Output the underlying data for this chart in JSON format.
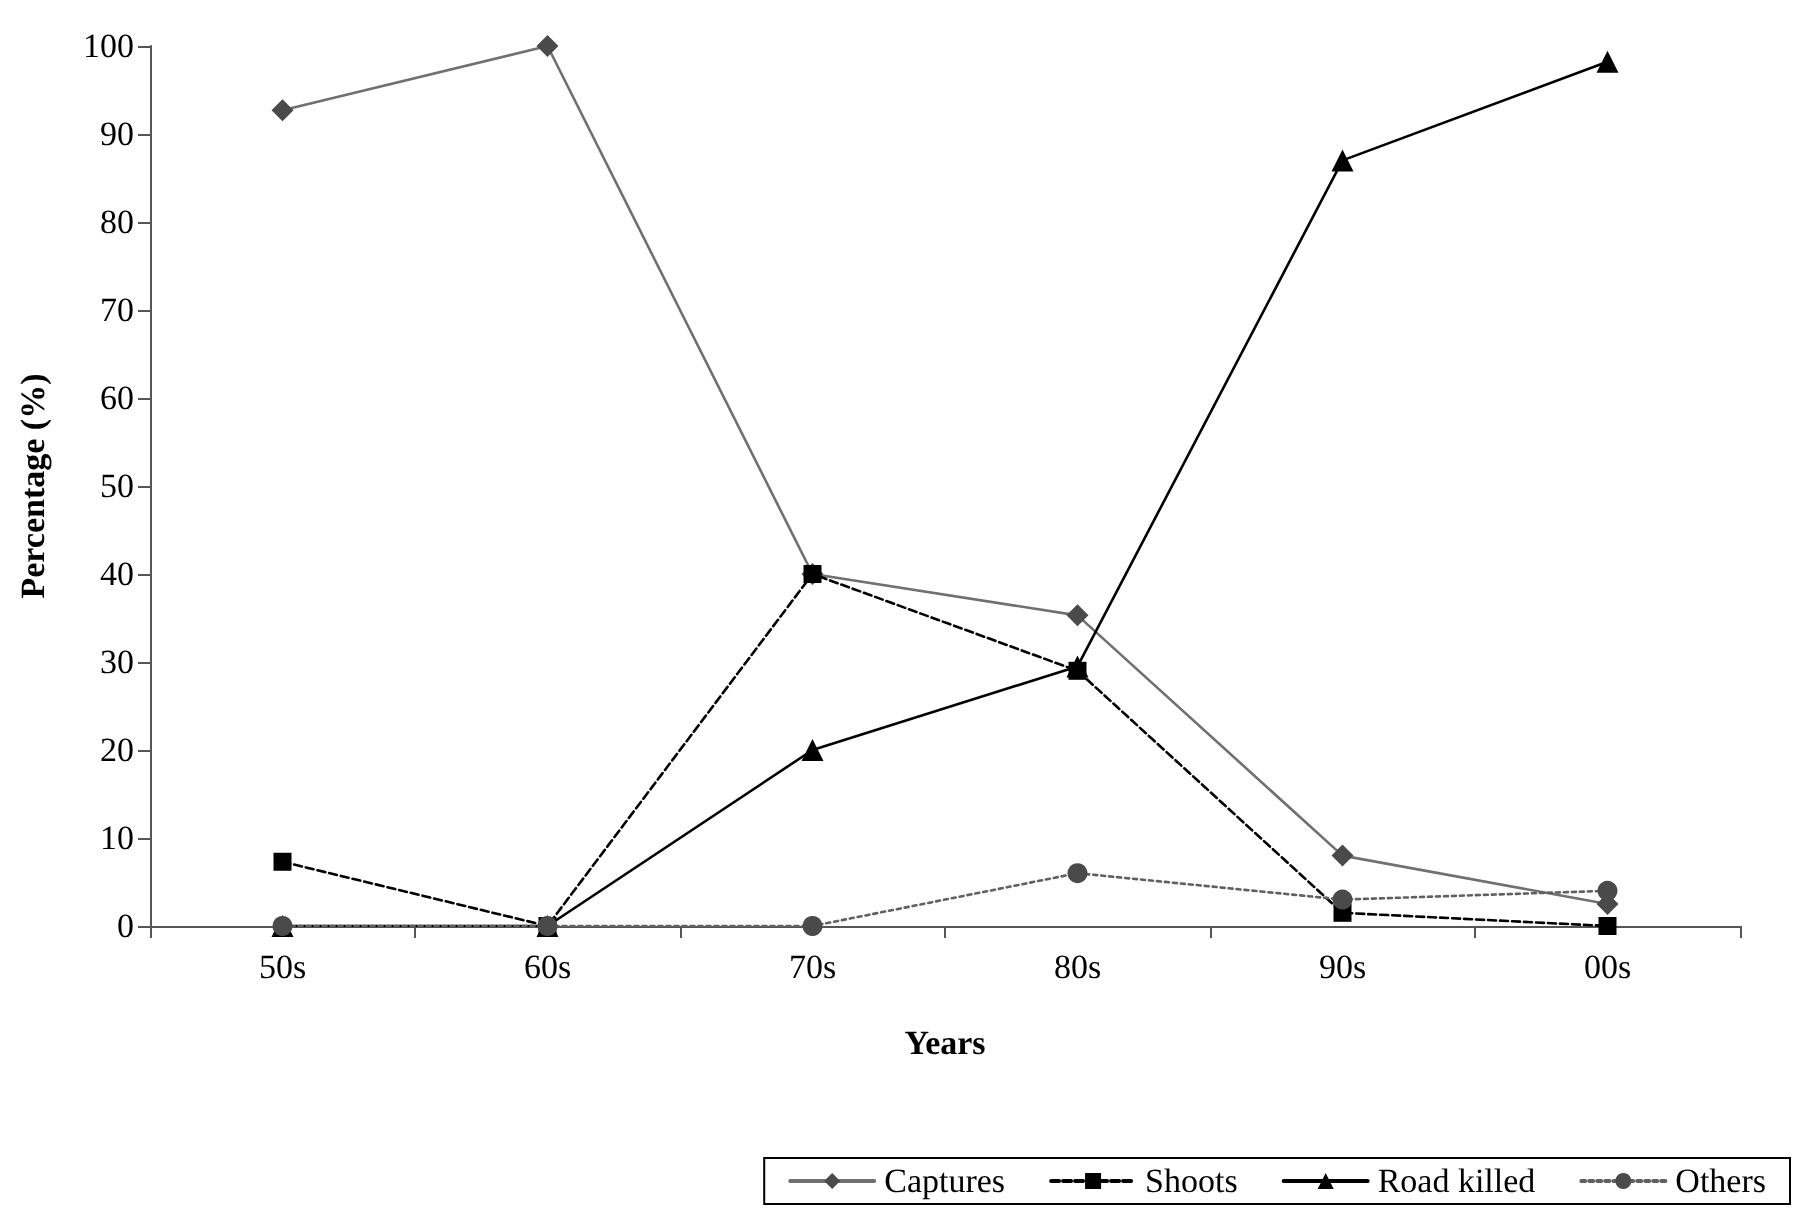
{
  "chart_data": {
    "type": "line",
    "xlabel": "Years",
    "ylabel": "Percentage (%)",
    "categories": [
      "50s",
      "60s",
      "70s",
      "80s",
      "90s",
      "00s"
    ],
    "series": [
      {
        "name": "Captures",
        "color": "#707070",
        "marker": "diamond",
        "line_style": "solid",
        "values": [
          92.7,
          100,
          40,
          35.3,
          8,
          2.5
        ]
      },
      {
        "name": "Shoots",
        "color": "#000000",
        "marker": "square",
        "line_style": "dashed",
        "values": [
          7.3,
          0,
          40,
          29,
          1.5,
          0
        ]
      },
      {
        "name": "Road killed",
        "color": "#000000",
        "marker": "triangle",
        "line_style": "solid",
        "values": [
          0,
          0,
          20,
          29.5,
          87,
          98.2
        ]
      },
      {
        "name": "Others",
        "color": "#606060",
        "marker": "circle",
        "line_style": "dotted",
        "values": [
          0,
          0,
          0,
          6,
          3,
          4
        ]
      }
    ],
    "ylim": [
      0,
      100
    ],
    "yticks": [
      0,
      10,
      20,
      30,
      40,
      50,
      60,
      70,
      80,
      90,
      100
    ],
    "grid": false,
    "legend": "bottom"
  }
}
